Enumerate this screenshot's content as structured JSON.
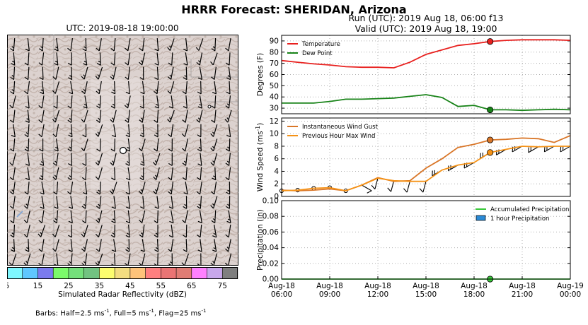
{
  "header": {
    "title": "HRRR Forecast: SHERIDAN, Arizona",
    "map_time": "UTC: 2019-08-18 19:00:00",
    "run_line": "Run (UTC): 2019 Aug 18, 06:00 f13",
    "valid_line": "Valid (UTC): 2019 Aug 18, 19:00"
  },
  "colorbar": {
    "label": "Simulated Radar Reflectivity (dBZ)",
    "ticks": [
      "5",
      "15",
      "25",
      "35",
      "45",
      "55",
      "65",
      "75"
    ],
    "colors": [
      "#7ef7fe",
      "#5fc7ff",
      "#7b7bef",
      "#7bfa6a",
      "#74e07b",
      "#72c381",
      "#fcfd6e",
      "#f3dd80",
      "#fec37a",
      "#fe7f7f",
      "#ea7474",
      "#e07c74",
      "#ff80fe",
      "#c8a7eb",
      "#7f7f7f"
    ]
  },
  "barbs_note": {
    "prefix": "Barbs: Half=2.5 ms",
    "mid1": ", Full=5 ms",
    "mid2": ", Flag=25 ms",
    "sup": "-1"
  },
  "chart_data": [
    {
      "type": "line",
      "ylabel": "Degrees (F)",
      "ylim": [
        25,
        95
      ],
      "yticks": [
        "30",
        "40",
        "50",
        "60",
        "70",
        "80",
        "90"
      ],
      "grid": true,
      "legend": "top-left",
      "x": [
        "2019-08-18 06:00",
        "07:00",
        "08:00",
        "09:00",
        "10:00",
        "11:00",
        "12:00",
        "13:00",
        "14:00",
        "15:00",
        "16:00",
        "17:00",
        "18:00",
        "19:00",
        "20:00",
        "21:00",
        "22:00",
        "23:00",
        "2019-08-19 00:00"
      ],
      "series": [
        {
          "name": "Temperature",
          "color": "#e8201e",
          "values": [
            72.5,
            71,
            69.5,
            68.5,
            67,
            66.5,
            66.5,
            66,
            71,
            78,
            82,
            86,
            87.5,
            89.5,
            90.5,
            91,
            91,
            91,
            90.5
          ]
        },
        {
          "name": "Dew Point",
          "color": "#188318",
          "values": [
            34.5,
            34.5,
            34.5,
            36,
            38,
            38,
            38.5,
            39,
            40.5,
            42,
            39.5,
            31.5,
            32.5,
            28.5,
            28.5,
            28,
            28.5,
            29,
            28.5
          ]
        }
      ],
      "marker": {
        "x_index": 13
      }
    },
    {
      "type": "line",
      "ylabel": "Wind Speed (ms",
      "ylabel_sup": "-1",
      "ylabel_end": ")",
      "ylim": [
        0,
        12.5
      ],
      "yticks": [
        "0",
        "2",
        "4",
        "6",
        "8",
        "10",
        "12"
      ],
      "grid": true,
      "legend": "top-left",
      "series": [
        {
          "name": "Instantaneous Wind Gust",
          "color": "#d97628",
          "values": [
            1.0,
            0.9,
            1.0,
            1.2,
            0.9,
            1.8,
            3.0,
            2.4,
            2.5,
            4.5,
            6.0,
            7.8,
            8.3,
            9.0,
            9.1,
            9.3,
            9.2,
            8.6,
            9.7
          ]
        },
        {
          "name": "Previous Hour Max Wind",
          "color": "#f59216",
          "values": [
            0.9,
            1.0,
            1.3,
            1.4,
            0.9,
            1.8,
            2.9,
            2.5,
            2.4,
            2.4,
            4.2,
            5.0,
            5.4,
            7.0,
            7.5,
            8.0,
            7.9,
            8.0,
            8.0
          ]
        }
      ],
      "marker": {
        "x_index": 13
      }
    },
    {
      "type": "area",
      "ylabel": "Precipitation (in)",
      "ylim": [
        0,
        0.1
      ],
      "yticks": [
        "0.00",
        "0.02",
        "0.04",
        "0.06",
        "0.08",
        "0.10"
      ],
      "grid": true,
      "legend": "top-right",
      "xticks": [
        [
          "Aug-18",
          "06:00"
        ],
        [
          "Aug-18",
          "09:00"
        ],
        [
          "Aug-18",
          "12:00"
        ],
        [
          "Aug-18",
          "15:00"
        ],
        [
          "Aug-18",
          "18:00"
        ],
        [
          "Aug-18",
          "21:00"
        ],
        [
          "Aug-19",
          "00:00"
        ]
      ],
      "series": [
        {
          "name": "Accumulated Precipitation",
          "color": "#38c838",
          "values": [
            0,
            0,
            0,
            0,
            0,
            0,
            0,
            0,
            0,
            0,
            0,
            0,
            0,
            0,
            0,
            0,
            0,
            0,
            0
          ]
        },
        {
          "name": "1 hour Precipitation",
          "color": "#2b8ad6",
          "values": [
            0,
            0,
            0,
            0,
            0,
            0,
            0,
            0,
            0,
            0,
            0,
            0,
            0,
            0,
            0,
            0,
            0,
            0,
            0
          ]
        }
      ],
      "marker": {
        "x_index": 13
      }
    }
  ]
}
